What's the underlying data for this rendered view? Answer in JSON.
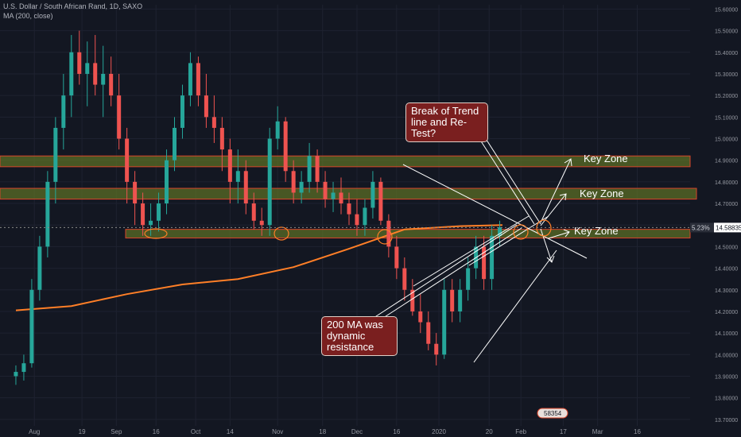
{
  "header": {
    "symbol_line": "U.S. Dollar / South African Rand, 1D, SAXO",
    "indicator_line": "MA (200, close)"
  },
  "colors": {
    "background": "#131722",
    "up_candle": "#26a69a",
    "down_candle": "#ef5350",
    "ma_line": "#ff7f27",
    "zone_fill": "#5b6e26",
    "zone_border": "#d9442a",
    "grid": "#1e2230",
    "callout_bg": "#7a1f1f"
  },
  "annotations": {
    "callout_break": "Break of Trend line and Re-Test?",
    "callout_ma": "200 MA was dynamic resistance",
    "key_zone_labels": [
      "Key Zone",
      "Key Zone",
      "Key Zone"
    ]
  },
  "price_tag": {
    "percent": "5.23%",
    "price": "14.58835"
  },
  "bottom_badge": "58354",
  "chart_data": {
    "type": "candlestick",
    "title": "U.S. Dollar / South African Rand, 1D, SAXO",
    "y_ticks": [
      "15.60000",
      "15.50000",
      "15.40000",
      "15.30000",
      "15.20000",
      "15.10000",
      "15.00000",
      "14.90000",
      "14.80000",
      "14.70000",
      "14.60000",
      "14.50000",
      "14.40000",
      "14.30000",
      "14.20000",
      "14.10000",
      "14.00000",
      "13.90000",
      "13.80000",
      "13.70000"
    ],
    "x_ticks": [
      "Aug",
      "19",
      "Sep",
      "16",
      "Oct",
      "14",
      "Nov",
      "18",
      "Dec",
      "16",
      "2020",
      "20",
      "Feb",
      "17",
      "Mar",
      "16"
    ],
    "ylim": [
      13.67,
      15.62
    ],
    "last_price": 14.58835,
    "key_zones": [
      [
        14.87,
        14.92
      ],
      [
        14.72,
        14.77
      ],
      [
        14.54,
        14.58
      ]
    ],
    "ma200": [
      {
        "date": "2019-07-25",
        "value": 14.205
      },
      {
        "date": "2019-08-15",
        "value": 14.225
      },
      {
        "date": "2019-09-05",
        "value": 14.28
      },
      {
        "date": "2019-09-26",
        "value": 14.325
      },
      {
        "date": "2019-10-17",
        "value": 14.35
      },
      {
        "date": "2019-11-07",
        "value": 14.405
      },
      {
        "date": "2019-11-28",
        "value": 14.49
      },
      {
        "date": "2019-12-19",
        "value": 14.58
      },
      {
        "date": "2020-01-09",
        "value": 14.595
      },
      {
        "date": "2020-01-25",
        "value": 14.6
      }
    ],
    "candles": [
      {
        "date": "2019-07-25",
        "o": 13.9,
        "h": 13.95,
        "l": 13.86,
        "c": 13.92
      },
      {
        "date": "2019-07-28",
        "o": 13.92,
        "h": 14.0,
        "l": 13.88,
        "c": 13.96
      },
      {
        "date": "2019-07-31",
        "o": 13.96,
        "h": 14.35,
        "l": 13.94,
        "c": 14.3
      },
      {
        "date": "2019-08-03",
        "o": 14.3,
        "h": 14.55,
        "l": 14.25,
        "c": 14.5
      },
      {
        "date": "2019-08-06",
        "o": 14.5,
        "h": 14.85,
        "l": 14.45,
        "c": 14.8
      },
      {
        "date": "2019-08-09",
        "o": 14.8,
        "h": 15.1,
        "l": 14.7,
        "c": 15.05
      },
      {
        "date": "2019-08-12",
        "o": 15.05,
        "h": 15.3,
        "l": 14.95,
        "c": 15.2
      },
      {
        "date": "2019-08-15",
        "o": 15.2,
        "h": 15.48,
        "l": 15.1,
        "c": 15.4
      },
      {
        "date": "2019-08-18",
        "o": 15.4,
        "h": 15.5,
        "l": 15.25,
        "c": 15.3
      },
      {
        "date": "2019-08-21",
        "o": 15.3,
        "h": 15.45,
        "l": 15.15,
        "c": 15.35
      },
      {
        "date": "2019-08-24",
        "o": 15.35,
        "h": 15.48,
        "l": 15.2,
        "c": 15.25
      },
      {
        "date": "2019-08-27",
        "o": 15.25,
        "h": 15.43,
        "l": 15.1,
        "c": 15.3
      },
      {
        "date": "2019-08-30",
        "o": 15.3,
        "h": 15.38,
        "l": 15.15,
        "c": 15.2
      },
      {
        "date": "2019-09-02",
        "o": 15.2,
        "h": 15.3,
        "l": 14.95,
        "c": 15.0
      },
      {
        "date": "2019-09-05",
        "o": 15.0,
        "h": 15.05,
        "l": 14.7,
        "c": 14.8
      },
      {
        "date": "2019-09-08",
        "o": 14.8,
        "h": 14.85,
        "l": 14.6,
        "c": 14.7
      },
      {
        "date": "2019-09-11",
        "o": 14.7,
        "h": 14.75,
        "l": 14.55,
        "c": 14.6
      },
      {
        "date": "2019-09-14",
        "o": 14.6,
        "h": 14.7,
        "l": 14.55,
        "c": 14.62
      },
      {
        "date": "2019-09-17",
        "o": 14.62,
        "h": 14.75,
        "l": 14.57,
        "c": 14.7
      },
      {
        "date": "2019-09-20",
        "o": 14.7,
        "h": 14.95,
        "l": 14.65,
        "c": 14.9
      },
      {
        "date": "2019-09-23",
        "o": 14.9,
        "h": 15.1,
        "l": 14.85,
        "c": 15.05
      },
      {
        "date": "2019-09-26",
        "o": 15.05,
        "h": 15.25,
        "l": 15.0,
        "c": 15.2
      },
      {
        "date": "2019-09-29",
        "o": 15.2,
        "h": 15.4,
        "l": 15.15,
        "c": 15.35
      },
      {
        "date": "2019-10-02",
        "o": 15.35,
        "h": 15.38,
        "l": 15.15,
        "c": 15.2
      },
      {
        "date": "2019-10-05",
        "o": 15.2,
        "h": 15.3,
        "l": 15.05,
        "c": 15.1
      },
      {
        "date": "2019-10-08",
        "o": 15.1,
        "h": 15.2,
        "l": 14.98,
        "c": 15.05
      },
      {
        "date": "2019-10-11",
        "o": 15.05,
        "h": 15.1,
        "l": 14.85,
        "c": 14.95
      },
      {
        "date": "2019-10-14",
        "o": 14.95,
        "h": 15.0,
        "l": 14.7,
        "c": 14.8
      },
      {
        "date": "2019-10-17",
        "o": 14.8,
        "h": 14.95,
        "l": 14.7,
        "c": 14.85
      },
      {
        "date": "2019-10-20",
        "o": 14.85,
        "h": 14.9,
        "l": 14.65,
        "c": 14.7
      },
      {
        "date": "2019-10-23",
        "o": 14.7,
        "h": 14.75,
        "l": 14.58,
        "c": 14.62
      },
      {
        "date": "2019-10-26",
        "o": 14.62,
        "h": 14.68,
        "l": 14.55,
        "c": 14.6
      },
      {
        "date": "2019-10-29",
        "o": 14.6,
        "h": 15.05,
        "l": 14.55,
        "c": 15.0
      },
      {
        "date": "2019-11-01",
        "o": 15.0,
        "h": 15.15,
        "l": 14.95,
        "c": 15.08
      },
      {
        "date": "2019-11-04",
        "o": 15.08,
        "h": 15.1,
        "l": 14.8,
        "c": 14.85
      },
      {
        "date": "2019-11-07",
        "o": 14.85,
        "h": 14.9,
        "l": 14.7,
        "c": 14.75
      },
      {
        "date": "2019-11-10",
        "o": 14.75,
        "h": 14.85,
        "l": 14.7,
        "c": 14.8
      },
      {
        "date": "2019-11-13",
        "o": 14.8,
        "h": 14.98,
        "l": 14.75,
        "c": 14.92
      },
      {
        "date": "2019-11-16",
        "o": 14.92,
        "h": 14.95,
        "l": 14.75,
        "c": 14.8
      },
      {
        "date": "2019-11-19",
        "o": 14.8,
        "h": 14.85,
        "l": 14.68,
        "c": 14.72
      },
      {
        "date": "2019-11-22",
        "o": 14.72,
        "h": 14.8,
        "l": 14.66,
        "c": 14.75
      },
      {
        "date": "2019-11-25",
        "o": 14.75,
        "h": 14.82,
        "l": 14.65,
        "c": 14.7
      },
      {
        "date": "2019-11-28",
        "o": 14.7,
        "h": 14.75,
        "l": 14.6,
        "c": 14.65
      },
      {
        "date": "2019-12-01",
        "o": 14.65,
        "h": 14.72,
        "l": 14.55,
        "c": 14.6
      },
      {
        "date": "2019-12-04",
        "o": 14.6,
        "h": 14.72,
        "l": 14.55,
        "c": 14.68
      },
      {
        "date": "2019-12-07",
        "o": 14.68,
        "h": 14.85,
        "l": 14.63,
        "c": 14.8
      },
      {
        "date": "2019-12-10",
        "o": 14.8,
        "h": 14.82,
        "l": 14.6,
        "c": 14.62
      },
      {
        "date": "2019-12-13",
        "o": 14.62,
        "h": 14.65,
        "l": 14.45,
        "c": 14.5
      },
      {
        "date": "2019-12-16",
        "o": 14.5,
        "h": 14.55,
        "l": 14.35,
        "c": 14.4
      },
      {
        "date": "2019-12-19",
        "o": 14.4,
        "h": 14.45,
        "l": 14.25,
        "c": 14.3
      },
      {
        "date": "2019-12-22",
        "o": 14.3,
        "h": 14.35,
        "l": 14.18,
        "c": 14.2
      },
      {
        "date": "2019-12-25",
        "o": 14.2,
        "h": 14.28,
        "l": 14.1,
        "c": 14.15
      },
      {
        "date": "2019-12-28",
        "o": 14.15,
        "h": 14.2,
        "l": 14.02,
        "c": 14.05
      },
      {
        "date": "2019-12-31",
        "o": 14.05,
        "h": 14.1,
        "l": 13.95,
        "c": 14.0
      },
      {
        "date": "2020-01-03",
        "o": 14.0,
        "h": 14.35,
        "l": 13.98,
        "c": 14.3
      },
      {
        "date": "2020-01-06",
        "o": 14.3,
        "h": 14.35,
        "l": 14.15,
        "c": 14.2
      },
      {
        "date": "2020-01-09",
        "o": 14.2,
        "h": 14.35,
        "l": 14.15,
        "c": 14.3
      },
      {
        "date": "2020-01-12",
        "o": 14.3,
        "h": 14.45,
        "l": 14.25,
        "c": 14.4
      },
      {
        "date": "2020-01-15",
        "o": 14.4,
        "h": 14.55,
        "l": 14.35,
        "c": 14.5
      },
      {
        "date": "2020-01-18",
        "o": 14.5,
        "h": 14.55,
        "l": 14.3,
        "c": 14.35
      },
      {
        "date": "2020-01-21",
        "o": 14.35,
        "h": 14.6,
        "l": 14.3,
        "c": 14.55
      },
      {
        "date": "2020-01-24",
        "o": 14.55,
        "h": 14.62,
        "l": 14.5,
        "c": 14.59
      }
    ]
  }
}
